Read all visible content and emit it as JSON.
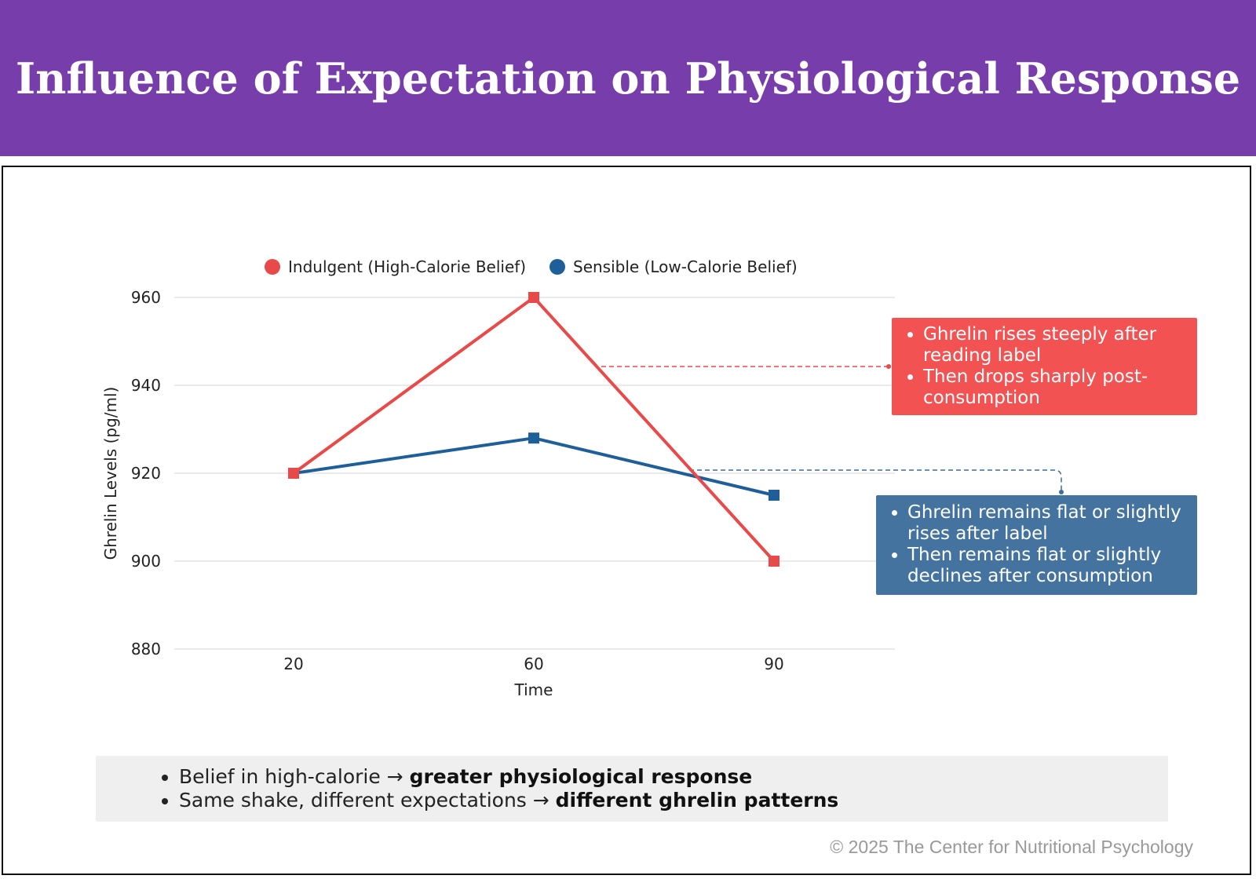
{
  "header": {
    "title": "Influence of Expectation on Physiological Response"
  },
  "colors": {
    "header_bg": "#773dab",
    "indulgent": "#e84a4a",
    "sensible": "#1f5f99",
    "callout_red": "#f25252",
    "callout_blue": "#44739f"
  },
  "chart_data": {
    "type": "line",
    "title": "",
    "xlabel": "Time",
    "ylabel": "Ghrelin Levels (pg/ml)",
    "categories": [
      "20",
      "60",
      "90"
    ],
    "ylim": [
      880,
      960
    ],
    "yticks": [
      "880",
      "900",
      "920",
      "940",
      "960"
    ],
    "legend_position": "top",
    "grid": true,
    "series": [
      {
        "name": "Indulgent (High-Calorie Belief)",
        "values": [
          920,
          960,
          900
        ],
        "color": "#e84a4a"
      },
      {
        "name": "Sensible (Low-Calorie Belief)",
        "values": [
          920,
          928,
          915
        ],
        "color": "#1f5f99"
      }
    ]
  },
  "callouts": {
    "indulgent": [
      "Ghrelin rises steeply after reading label",
      "Then drops sharply post-consumption"
    ],
    "sensible": [
      "Ghrelin remains flat or slightly rises after label",
      "Then remains flat or slightly declines after consumption"
    ]
  },
  "summary": [
    {
      "text": "Belief in high-calorie → ",
      "bold": "greater physiological response"
    },
    {
      "text": "Same shake, different expectations → ",
      "bold": "different ghrelin patterns"
    }
  ],
  "footer": {
    "text": "© 2025 The Center for Nutritional Psychology"
  }
}
